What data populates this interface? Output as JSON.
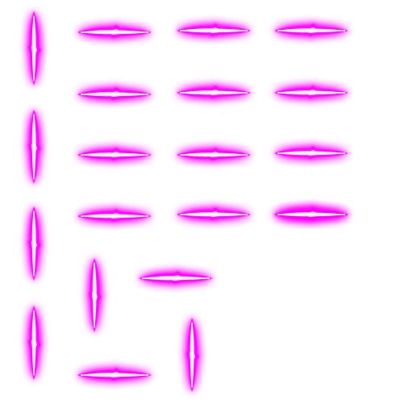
{
  "sprite_sheet": {
    "background_color": "#ffffff",
    "glow_color": "#ff00ff",
    "core_color": "#ffffff",
    "sprite_count": 21,
    "sprites": [
      {
        "name": "sprite-vertical-1",
        "orientation": "vertical"
      },
      {
        "name": "sprite-horizontal-1",
        "orientation": "horizontal"
      },
      {
        "name": "sprite-horizontal-2",
        "orientation": "horizontal"
      },
      {
        "name": "sprite-horizontal-3",
        "orientation": "horizontal"
      },
      {
        "name": "sprite-horizontal-4",
        "orientation": "horizontal"
      },
      {
        "name": "sprite-horizontal-5",
        "orientation": "horizontal"
      },
      {
        "name": "sprite-horizontal-6",
        "orientation": "horizontal"
      },
      {
        "name": "sprite-vertical-2",
        "orientation": "vertical"
      },
      {
        "name": "sprite-horizontal-7",
        "orientation": "horizontal"
      },
      {
        "name": "sprite-horizontal-8",
        "orientation": "horizontal"
      },
      {
        "name": "sprite-horizontal-9",
        "orientation": "horizontal"
      },
      {
        "name": "sprite-horizontal-10",
        "orientation": "horizontal"
      },
      {
        "name": "sprite-horizontal-11",
        "orientation": "horizontal"
      },
      {
        "name": "sprite-horizontal-12",
        "orientation": "horizontal"
      },
      {
        "name": "sprite-vertical-3",
        "orientation": "vertical"
      },
      {
        "name": "sprite-vertical-4",
        "orientation": "vertical"
      },
      {
        "name": "sprite-horizontal-13",
        "orientation": "horizontal"
      },
      {
        "name": "sprite-vertical-5",
        "orientation": "vertical"
      },
      {
        "name": "sprite-horizontal-14",
        "orientation": "horizontal"
      },
      {
        "name": "sprite-vertical-6",
        "orientation": "vertical"
      },
      {
        "name": "sprite-horizontal-15",
        "orientation": "horizontal"
      }
    ]
  }
}
